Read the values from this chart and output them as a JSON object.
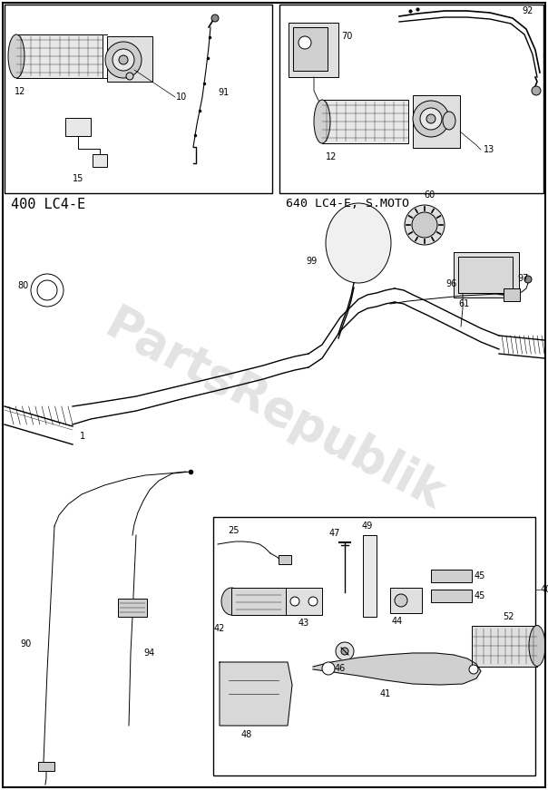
{
  "bg_color": "#ffffff",
  "fig_width": 6.04,
  "fig_height": 8.71,
  "dpi": 100,
  "box1_label": "400 LC4-E",
  "box2_label": "640 LC4-E, S.MOTO",
  "watermark": "PartsRepublik",
  "lw": 0.7,
  "lw2": 1.0
}
